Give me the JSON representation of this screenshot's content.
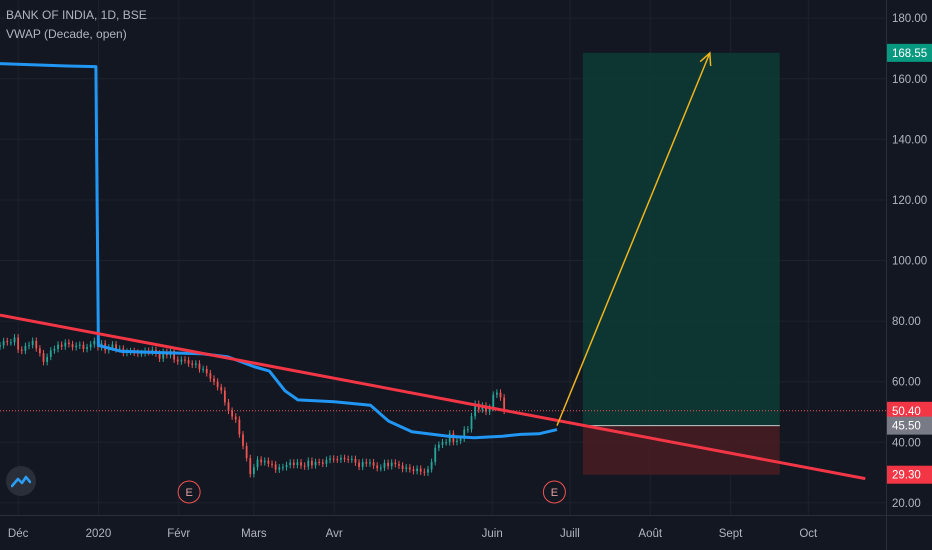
{
  "header": {
    "symbol_line": "BANK OF INDIA, 1D, BSE",
    "indicator_line": "VWAP (Decade, open)"
  },
  "colors": {
    "background": "#131722",
    "candle_up": "#26a69a",
    "candle_down": "#ef5350",
    "vwap": "#2196f3",
    "trendline": "#f23645",
    "arrow": "#f0b41d",
    "target_zone": "#0d3b35",
    "stop_zone": "#4a1c22"
  },
  "chart_data": {
    "type": "candlestick",
    "title": "BANK OF INDIA, 1D, BSE",
    "xlabel": "",
    "ylabel": "",
    "ylim": [
      16,
      186
    ],
    "x_range": [
      "2019-11-24",
      "2020-10-31"
    ],
    "x_ticks": [
      {
        "date": "2019-12-01",
        "label": "Déc"
      },
      {
        "date": "2020-01-01",
        "label": "2020"
      },
      {
        "date": "2020-02-01",
        "label": "Févr"
      },
      {
        "date": "2020-03-01",
        "label": "Mars"
      },
      {
        "date": "2020-04-01",
        "label": "Avr"
      },
      {
        "date": "2020-06-01",
        "label": "Juin"
      },
      {
        "date": "2020-07-01",
        "label": "Juill"
      },
      {
        "date": "2020-08-01",
        "label": "Août"
      },
      {
        "date": "2020-09-01",
        "label": "Sept"
      },
      {
        "date": "2020-10-01",
        "label": "Oct"
      }
    ],
    "y_ticks": [
      20,
      40,
      60,
      80,
      100,
      120,
      140,
      160,
      180
    ],
    "price_labels": [
      {
        "value": 168.55,
        "text": "168.55",
        "color": "#089981"
      },
      {
        "value": 50.4,
        "text": "50.40",
        "color": "#f23645"
      },
      {
        "value": 45.5,
        "text": "45.50",
        "color": "#787b86"
      },
      {
        "value": 29.3,
        "text": "29.30",
        "color": "#f23645"
      }
    ],
    "current_price": 50.4,
    "candles": {
      "start_date": "2019-11-24",
      "closes": [
        72.0,
        73.4,
        73.0,
        73.0,
        74.6,
        70.6,
        70.2,
        71.8,
        72.1,
        73.5,
        71.0,
        69.4,
        66.5,
        68.2,
        70.3,
        70.8,
        72.2,
        71.6,
        72.9,
        72.4,
        71.4,
        71.9,
        72.2,
        70.8,
        71.4,
        72.3,
        73.5,
        71.4,
        72.6,
        70.4,
        71.3,
        72.3,
        70.7,
        70.9,
        69.5,
        69.9,
        70.1,
        69.6,
        69.3,
        69.4,
        70.2,
        69.8,
        70.5,
        69.3,
        67.6,
        69.8,
        68.8,
        70.2,
        67.3,
        66.7,
        67.3,
        67.1,
        66.0,
        65.6,
        66.0,
        64.1,
        64.2,
        62.8,
        61.0,
        60.0,
        58.2,
        57.1,
        53.2,
        50.4,
        48.5,
        47.5,
        42.6,
        38.8,
        34.8,
        29.5,
        31.8,
        34.3,
        33.4,
        33.9,
        32.9,
        32.7,
        31.0,
        31.7,
        31.8,
        32.5,
        33.3,
        32.5,
        33.4,
        32.3,
        32.0,
        33.9,
        32.4,
        33.5,
        33.4,
        32.9,
        34.2,
        34.6,
        34.4,
        34.3,
        34.8,
        34.5,
        34.3,
        34.5,
        33.3,
        31.9,
        33.5,
        33.0,
        33.4,
        32.3,
        31.5,
        31.6,
        33.2,
        32.1,
        33.3,
        32.8,
        32.3,
        31.2,
        31.7,
        31.1,
        30.5,
        31.3,
        30.3,
        30.0,
        31.1,
        33.5,
        38.2,
        39.2,
        40.0,
        40.0,
        42.9,
        40.1,
        40.5,
        41.2,
        44.2,
        44.3,
        48.6,
        52.7,
        50.8,
        52.1,
        50.1,
        51.4,
        55.7,
        56.4,
        54.8,
        50.4
      ]
    },
    "series": [
      {
        "name": "VWAP (Decade, open)",
        "points": [
          [
            "2019-11-24",
            165.0
          ],
          [
            "2019-12-20",
            164.2
          ],
          [
            "2019-12-31",
            164.0
          ],
          [
            "2020-01-01",
            72.0
          ],
          [
            "2020-01-10",
            70.0
          ],
          [
            "2020-01-25",
            69.6
          ],
          [
            "2020-02-10",
            69.2
          ],
          [
            "2020-02-20",
            68.2
          ],
          [
            "2020-03-01",
            65.0
          ],
          [
            "2020-03-07",
            63.5
          ],
          [
            "2020-03-13",
            57.0
          ],
          [
            "2020-03-18",
            54.0
          ],
          [
            "2020-04-01",
            53.4
          ],
          [
            "2020-04-15",
            52.2
          ],
          [
            "2020-04-22",
            47.0
          ],
          [
            "2020-05-01",
            43.5
          ],
          [
            "2020-05-15",
            42.0
          ],
          [
            "2020-05-25",
            41.5
          ],
          [
            "2020-06-05",
            42.0
          ],
          [
            "2020-06-12",
            42.6
          ],
          [
            "2020-06-19",
            42.8
          ],
          [
            "2020-06-26",
            44.2
          ]
        ]
      }
    ],
    "annotations": {
      "trendline": {
        "from": [
          "2019-11-24",
          82.0
        ],
        "to": [
          "2020-10-23",
          28.0
        ]
      },
      "arrow": {
        "from": [
          "2020-06-26",
          45.5
        ],
        "to": [
          "2020-08-24",
          168.5
        ]
      },
      "long_position": {
        "date_from": "2020-07-06",
        "date_to": "2020-09-20",
        "entry": 45.5,
        "target": 168.55,
        "stop": 29.3
      },
      "earnings_markers": [
        {
          "date": "2020-02-05",
          "label": "E"
        },
        {
          "date": "2020-06-25",
          "label": "E"
        }
      ]
    }
  }
}
